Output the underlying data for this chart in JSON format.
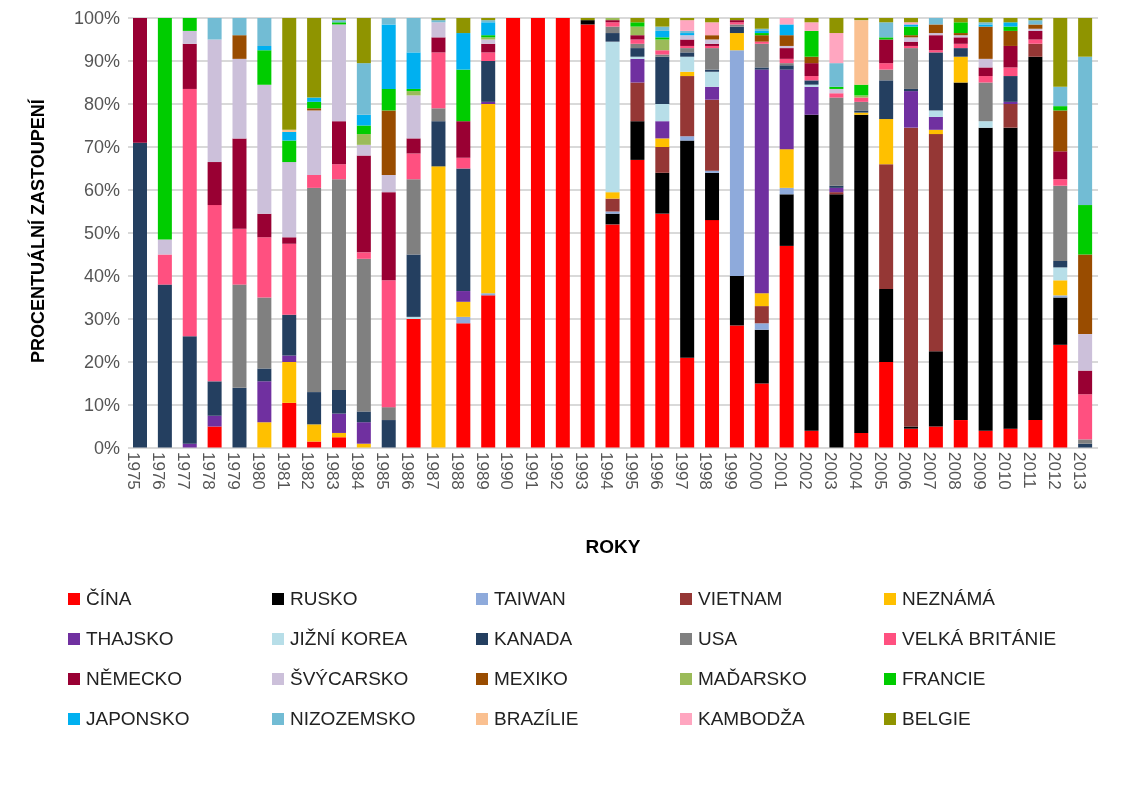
{
  "chart_data": {
    "type": "bar",
    "stacked": true,
    "xlabel": "ROKY",
    "ylabel": "PROCENTUÁLNÍ ZASTOUPENÍ",
    "categories": [
      "1975",
      "1976",
      "1977",
      "1978",
      "1979",
      "1980",
      "1981",
      "1982",
      "1983",
      "1984",
      "1985",
      "1986",
      "1987",
      "1988",
      "1989",
      "1990",
      "1991",
      "1992",
      "1993",
      "1994",
      "1995",
      "1996",
      "1997",
      "1998",
      "1999",
      "2000",
      "2001",
      "2002",
      "2003",
      "2004",
      "2005",
      "2006",
      "2007",
      "2008",
      "2009",
      "2010",
      "2011",
      "2012",
      "2013"
    ],
    "ylim": [
      0,
      100
    ],
    "yticks": [
      {
        "value": 0,
        "label": "0%"
      },
      {
        "value": 10,
        "label": "10%"
      },
      {
        "value": 20,
        "label": "20%"
      },
      {
        "value": 30,
        "label": "30%"
      },
      {
        "value": 40,
        "label": "40%"
      },
      {
        "value": 50,
        "label": "50%"
      },
      {
        "value": 60,
        "label": "60%"
      },
      {
        "value": 70,
        "label": "70%"
      },
      {
        "value": 80,
        "label": "80%"
      },
      {
        "value": 90,
        "label": "90%"
      },
      {
        "value": 100,
        "label": "100%"
      }
    ],
    "grid": "y",
    "legend": "bottom",
    "series": [
      {
        "name": "ČÍNA",
        "color": "#ff0000",
        "values": [
          0,
          0,
          0,
          5,
          0,
          0,
          10.5,
          1.5,
          2.5,
          0,
          0,
          30,
          0,
          29,
          35.5,
          100,
          100,
          100,
          98.5,
          52,
          67,
          54.5,
          21,
          53,
          28.5,
          15,
          47,
          4,
          0,
          3.5,
          20,
          4.5,
          5,
          6.5,
          4,
          4.5,
          6.5,
          24,
          0
        ]
      },
      {
        "name": "RUSKO",
        "color": "#000000",
        "values": [
          0,
          0,
          0,
          0,
          0,
          0,
          0,
          0,
          0,
          0,
          0,
          0,
          0,
          0,
          0,
          0,
          0,
          0,
          1,
          2.5,
          9,
          9.5,
          50.5,
          11,
          11.5,
          12.5,
          12,
          73.5,
          59,
          74,
          17,
          0.5,
          17.5,
          78.5,
          70.5,
          70,
          84.5,
          11,
          0
        ]
      },
      {
        "name": "TAIWAN",
        "color": "#8eaadb",
        "values": [
          0,
          0,
          0,
          0,
          0,
          0,
          0,
          0,
          0,
          0,
          0,
          0,
          0,
          1.5,
          0.5,
          0,
          0,
          0,
          0,
          0.5,
          0,
          0,
          1,
          0.5,
          52.5,
          1.5,
          1.5,
          0,
          0,
          0,
          0,
          0,
          0,
          0,
          0,
          0,
          0,
          0.5,
          0
        ]
      },
      {
        "name": "VIETNAM",
        "color": "#953735",
        "values": [
          0,
          0,
          0,
          0,
          0,
          0,
          0,
          0,
          0,
          0,
          0,
          0,
          0,
          0,
          0,
          0,
          0,
          0,
          0,
          3,
          9,
          6,
          14,
          16.5,
          0,
          4,
          0,
          0,
          0.5,
          0,
          29,
          69.5,
          50.5,
          0,
          0,
          5.5,
          3,
          0,
          0
        ]
      },
      {
        "name": "NEZNÁMÁ",
        "color": "#ffc000",
        "values": [
          0,
          0,
          0,
          0,
          0,
          6,
          9.5,
          4,
          1,
          1,
          0,
          0,
          65.5,
          3.5,
          44,
          0,
          0,
          0,
          0,
          1.5,
          0,
          2,
          1,
          0,
          4,
          3,
          9,
          0,
          0,
          0.5,
          10.5,
          0,
          1,
          6,
          0,
          0,
          0,
          3.5,
          0
        ]
      },
      {
        "name": "THAJSKO",
        "color": "#7030a0",
        "values": [
          0,
          0,
          1,
          2.5,
          0,
          9.5,
          1.5,
          0,
          4.5,
          5,
          0,
          0,
          0,
          2.5,
          0.5,
          0,
          0,
          0,
          0,
          0,
          5.5,
          4,
          0,
          3,
          0,
          52,
          18.5,
          6.5,
          1,
          0,
          0,
          8.5,
          3,
          0,
          0,
          0.5,
          0,
          0,
          0
        ]
      },
      {
        "name": "JIŽNÍ KOREA",
        "color": "#b7dee8",
        "values": [
          0,
          0,
          0,
          0,
          0,
          0,
          0,
          0,
          0,
          0,
          0,
          0.5,
          0,
          0,
          0,
          0,
          0,
          0,
          0,
          35,
          0.5,
          4,
          3.5,
          3.5,
          0,
          0,
          0,
          0.5,
          0,
          0,
          0,
          0,
          1.5,
          0,
          1.5,
          0,
          0,
          3,
          0
        ]
      },
      {
        "name": "KANADA",
        "color": "#243f60",
        "values": [
          71,
          38,
          25,
          8,
          14,
          3,
          9.5,
          7.5,
          5.5,
          2.5,
          6.5,
          14.5,
          10.5,
          28.5,
          9.5,
          0,
          0,
          0,
          0,
          2,
          2,
          11,
          1,
          0.5,
          1.5,
          0.5,
          1,
          1,
          0.5,
          0.5,
          9,
          0.5,
          13.5,
          2,
          0,
          6,
          0,
          1.5,
          1
        ]
      },
      {
        "name": "USA",
        "color": "#808080",
        "values": [
          0,
          0,
          0,
          0,
          24,
          16.5,
          0,
          47.5,
          49,
          35.5,
          3,
          17.5,
          3,
          0,
          0,
          0,
          0,
          0,
          0,
          1.5,
          1,
          0.5,
          1,
          5,
          0.5,
          5.5,
          0.5,
          0,
          20.5,
          2,
          2.5,
          9.5,
          0,
          0,
          9,
          0,
          0,
          17.5,
          1
        ]
      },
      {
        "name": "VELKÁ BRITÁNIE",
        "color": "#ff5080",
        "values": [
          0,
          7,
          57.5,
          41,
          13,
          14,
          16.5,
          3,
          3.5,
          1.5,
          29.5,
          6,
          13,
          2.5,
          2,
          0,
          0,
          0,
          0,
          1,
          1,
          1,
          0.5,
          0.5,
          0.5,
          0.5,
          1,
          1,
          1,
          1,
          1.5,
          0.5,
          0.5,
          1,
          1.5,
          2,
          1,
          1.5,
          10.5
        ]
      },
      {
        "name": "NĚMECKO",
        "color": "#990033",
        "values": [
          29,
          0,
          10.5,
          10,
          21,
          5.5,
          1.5,
          0,
          10,
          22.5,
          20.5,
          3.5,
          3.5,
          8.5,
          2,
          0,
          0,
          0,
          0,
          0.5,
          1,
          0,
          1.5,
          0.5,
          0.5,
          0,
          2.5,
          3,
          0,
          0,
          5.5,
          1,
          3.5,
          1.5,
          2,
          5,
          2,
          6.5,
          5.5
        ]
      },
      {
        "name": "ŠVÝCARSKO",
        "color": "#ccc0da",
        "values": [
          0,
          3.5,
          3,
          28.5,
          18.5,
          30,
          17.5,
          15,
          22.5,
          2.5,
          4,
          10,
          3.5,
          0,
          1,
          0,
          0,
          0,
          0,
          0,
          0,
          0,
          1,
          1,
          0,
          0,
          0.5,
          0,
          1,
          0,
          0,
          1,
          0.5,
          0.5,
          2,
          0,
          0.5,
          0,
          8.5
        ]
      },
      {
        "name": "MEXIKO",
        "color": "#994c00",
        "values": [
          0,
          0,
          0,
          0,
          5.5,
          0,
          0,
          0.5,
          0,
          0,
          15,
          0,
          0,
          0,
          0,
          0,
          0,
          0,
          0,
          0,
          0,
          0,
          0,
          1,
          0,
          1.5,
          2.5,
          1.5,
          0,
          0,
          0,
          0.5,
          2,
          0.5,
          7.5,
          3.5,
          1,
          9.5,
          18.5
        ]
      },
      {
        "name": "MAĎARSKO",
        "color": "#9bbb59",
        "values": [
          0,
          0,
          0,
          0,
          0,
          0,
          0,
          0,
          0,
          2.5,
          0,
          1,
          0,
          0,
          0.5,
          0,
          0,
          0,
          0,
          0.5,
          2,
          2.5,
          0,
          0,
          0,
          0,
          0,
          0,
          0,
          0.5,
          0,
          0,
          0,
          0,
          0,
          0,
          0,
          0,
          0
        ]
      },
      {
        "name": "FRANCIE",
        "color": "#00cc00",
        "values": [
          0,
          51.5,
          3,
          0,
          0,
          8,
          5,
          1.5,
          0.5,
          2,
          5,
          0.5,
          0,
          12,
          0.5,
          0,
          0,
          0,
          0,
          0,
          1,
          0.5,
          0,
          0,
          0,
          0.5,
          0,
          6,
          0.5,
          2.5,
          0.5,
          2,
          0,
          2.5,
          0,
          1,
          0,
          1,
          11.5
        ]
      },
      {
        "name": "JAPONSKO",
        "color": "#00b0f0",
        "values": [
          0,
          0,
          0,
          0,
          0,
          1,
          2,
          1,
          0,
          2.5,
          15,
          8.5,
          0,
          8.5,
          3,
          0,
          0,
          0,
          0,
          0,
          0,
          1.5,
          0.5,
          0,
          0,
          0.5,
          2.5,
          0,
          0,
          0,
          0,
          0.5,
          0,
          0,
          0.5,
          1,
          0,
          0,
          0
        ]
      },
      {
        "name": "NIZOZEMSKO",
        "color": "#72bcd4",
        "values": [
          0,
          0,
          0,
          5,
          4,
          6.5,
          0,
          0,
          0.5,
          12,
          1.5,
          8,
          0.5,
          0,
          0.5,
          0,
          0,
          0,
          0,
          0,
          0,
          1,
          0.5,
          0,
          0,
          0.5,
          0,
          0,
          5.5,
          0,
          3.5,
          0,
          1.5,
          0,
          0.5,
          0,
          1,
          4.5,
          34.5
        ]
      },
      {
        "name": "BRAZÍLIE",
        "color": "#fac090",
        "values": [
          0,
          0,
          0,
          0,
          0,
          0,
          0.5,
          0,
          0,
          0,
          0,
          0,
          0,
          0,
          0,
          0,
          0,
          0,
          0,
          0,
          0,
          0,
          0,
          0,
          0,
          0,
          0,
          0,
          0,
          15,
          0,
          0,
          0,
          0,
          0,
          0,
          0,
          0,
          0
        ]
      },
      {
        "name": "KAMBODŽA",
        "color": "#ffa6c0",
        "values": [
          0,
          0,
          0,
          0,
          0,
          0,
          0,
          0,
          0,
          0,
          0,
          0,
          0,
          0,
          0,
          0,
          0,
          0,
          0,
          0,
          0,
          0,
          2.5,
          3,
          0,
          0,
          1.5,
          2,
          7,
          0,
          0,
          0.5,
          0,
          0,
          0,
          0,
          0,
          0,
          0
        ]
      },
      {
        "name": "BELGIE",
        "color": "#8f9400",
        "values": [
          0,
          0,
          0,
          0,
          0,
          0,
          26,
          18.5,
          0.5,
          10.5,
          0,
          0,
          0.5,
          3.5,
          0.5,
          0,
          0,
          0,
          0.5,
          0,
          1,
          2,
          0.5,
          1,
          0.5,
          2.5,
          0,
          1,
          3.5,
          0.5,
          1,
          1,
          0,
          1,
          1,
          1,
          0.5,
          16,
          9
        ]
      }
    ]
  }
}
